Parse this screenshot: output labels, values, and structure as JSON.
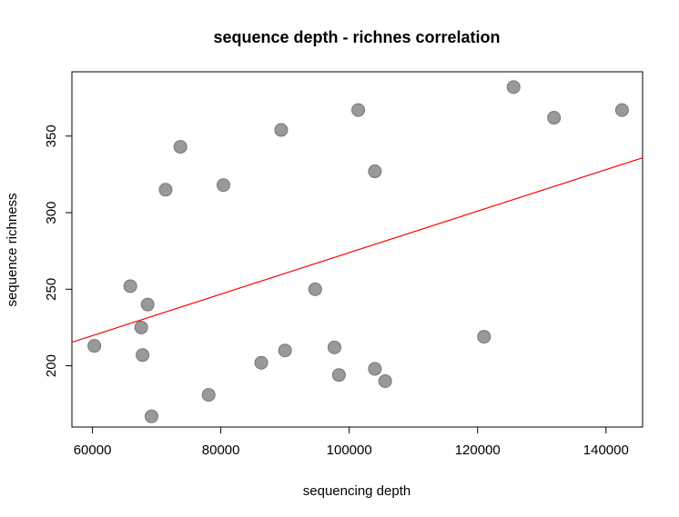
{
  "chart_data": {
    "type": "scatter",
    "title": "sequence depth - richnes correlation",
    "xlabel": "sequencing depth",
    "ylabel": "sequence richness",
    "xlim": [
      56800,
      145700
    ],
    "ylim": [
      160,
      392
    ],
    "xticks": [
      60000,
      80000,
      100000,
      120000,
      140000
    ],
    "yticks": [
      200,
      250,
      300,
      350
    ],
    "grid": false,
    "point_color": "#999999",
    "point_stroke": "#777777",
    "fit_line": {
      "intercept": 138.4,
      "slope": 0.001355,
      "color": "#ff0000"
    },
    "points": [
      {
        "x": 60300,
        "y": 213
      },
      {
        "x": 65900,
        "y": 252
      },
      {
        "x": 67600,
        "y": 225
      },
      {
        "x": 67800,
        "y": 207
      },
      {
        "x": 68600,
        "y": 240
      },
      {
        "x": 69200,
        "y": 167
      },
      {
        "x": 71400,
        "y": 315
      },
      {
        "x": 73700,
        "y": 343
      },
      {
        "x": 78100,
        "y": 181
      },
      {
        "x": 80400,
        "y": 318
      },
      {
        "x": 86300,
        "y": 202
      },
      {
        "x": 89400,
        "y": 354
      },
      {
        "x": 90000,
        "y": 210
      },
      {
        "x": 94700,
        "y": 250
      },
      {
        "x": 97700,
        "y": 212
      },
      {
        "x": 98400,
        "y": 194
      },
      {
        "x": 101400,
        "y": 367
      },
      {
        "x": 104000,
        "y": 327
      },
      {
        "x": 104000,
        "y": 198
      },
      {
        "x": 105600,
        "y": 190
      },
      {
        "x": 121000,
        "y": 219
      },
      {
        "x": 125600,
        "y": 382
      },
      {
        "x": 131900,
        "y": 362
      },
      {
        "x": 142500,
        "y": 367
      }
    ]
  }
}
